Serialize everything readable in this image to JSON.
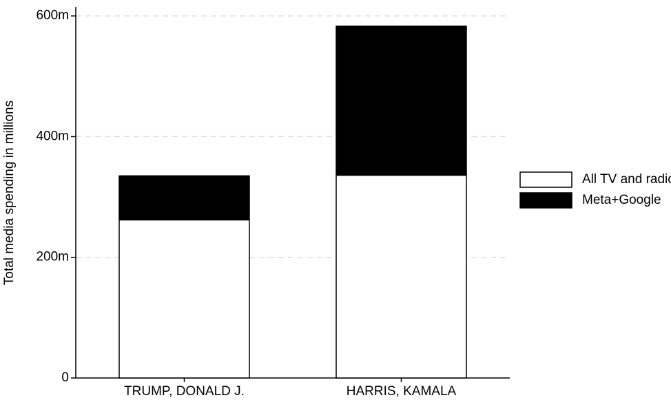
{
  "chart_data": {
    "type": "stacked-bar",
    "y_label": "Total media spending in millions",
    "categories": [
      "TRUMP, DONALD J.",
      "HARRIS, KAMALA"
    ],
    "series": [
      {
        "name": "All TV and radio",
        "color": "#ffffff",
        "values": [
          262,
          336
        ]
      },
      {
        "name": "Meta+Google",
        "color": "#000000",
        "values": [
          73,
          247
        ]
      }
    ],
    "ylim": [
      0,
      615
    ],
    "yticks": [
      0,
      {
        "value": 200,
        "label": "200m"
      },
      {
        "value": 400,
        "label": "400m"
      },
      {
        "value": 600,
        "label": "600m"
      }
    ],
    "grid": true,
    "legend": "right"
  }
}
